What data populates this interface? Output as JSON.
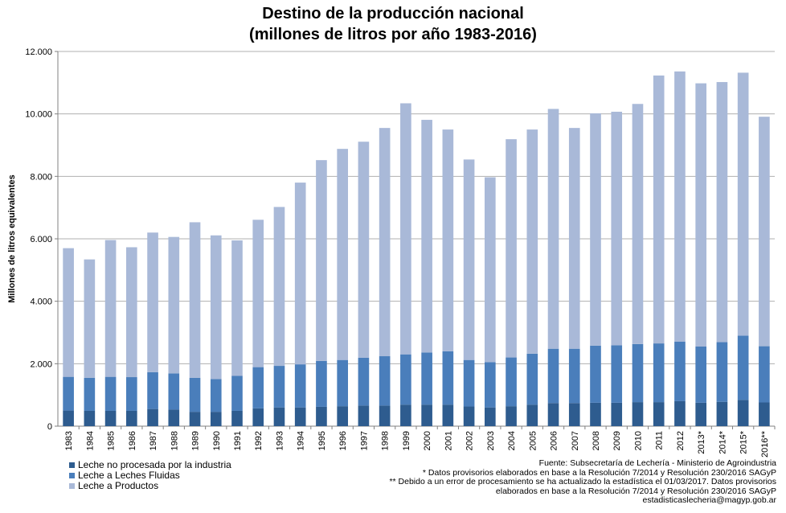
{
  "chart_data": {
    "type": "bar",
    "stacked": true,
    "title": "Destino de la producción nacional",
    "subtitle": "(millones  de litros por año 1983-2016)",
    "ylabel": "Millones de litros equivalentes",
    "xlabel": "",
    "ylim": [
      0,
      12000
    ],
    "yticks": [
      0,
      2000,
      4000,
      6000,
      8000,
      10000,
      12000
    ],
    "ytick_labels": [
      "0",
      "2.000",
      "4.000",
      "6.000",
      "8.000",
      "10.000",
      "12.000"
    ],
    "grid": true,
    "legend_position": "bottom-left",
    "categories": [
      "1983",
      "1984",
      "1985",
      "1986",
      "1987",
      "1988",
      "1989",
      "1990",
      "1991",
      "1992",
      "1993",
      "1994",
      "1995",
      "1996",
      "1997",
      "1998",
      "1999",
      "2000",
      "2001",
      "2002",
      "2003",
      "2004",
      "2005",
      "2006",
      "2007",
      "2008",
      "2009",
      "2010",
      "2011",
      "2012",
      "2013*",
      "2014*",
      "2015*",
      "2016**"
    ],
    "series": [
      {
        "name": "Leche no procesada por la industria",
        "color": "#2e5c8f",
        "values": [
          500,
          490,
          490,
          490,
          550,
          530,
          460,
          460,
          490,
          570,
          600,
          600,
          620,
          640,
          660,
          660,
          690,
          690,
          690,
          630,
          600,
          640,
          690,
          740,
          740,
          750,
          750,
          770,
          770,
          800,
          750,
          780,
          840,
          760
        ]
      },
      {
        "name": "Leche a Leches Fluidas",
        "color": "#4a7ebb",
        "values": [
          1080,
          1060,
          1090,
          1080,
          1180,
          1160,
          1090,
          1050,
          1120,
          1320,
          1330,
          1380,
          1470,
          1480,
          1530,
          1580,
          1610,
          1670,
          1710,
          1490,
          1450,
          1560,
          1630,
          1740,
          1740,
          1830,
          1840,
          1860,
          1880,
          1910,
          1800,
          1910,
          2060,
          1800
        ]
      },
      {
        "name": "Leche a Productos",
        "color": "#a9b9d8",
        "values": [
          4120,
          3790,
          4380,
          4160,
          4470,
          4370,
          4980,
          4600,
          4340,
          4720,
          5090,
          5820,
          6430,
          6760,
          6920,
          7310,
          8040,
          7450,
          7100,
          6420,
          5920,
          6990,
          7180,
          7680,
          7070,
          7440,
          7480,
          7690,
          8580,
          8650,
          8430,
          8330,
          8420,
          7350
        ]
      }
    ]
  },
  "notes": [
    "Fuente: Subsecretaría de Lechería - Ministerio de Agroindustria",
    "* Datos provisorios elaborados en base a la Resolución 7/2014 y Resolución 230/2016 SAGyP",
    "** Debido a un error de procesamiento se ha actualizado la estadística el 01/03/2017. Datos provisorios",
    "elaborados en base a la Resolución 7/2014 y Resolución 230/2016 SAGyP",
    "estadisticaslecheria@magyp.gob.ar"
  ]
}
